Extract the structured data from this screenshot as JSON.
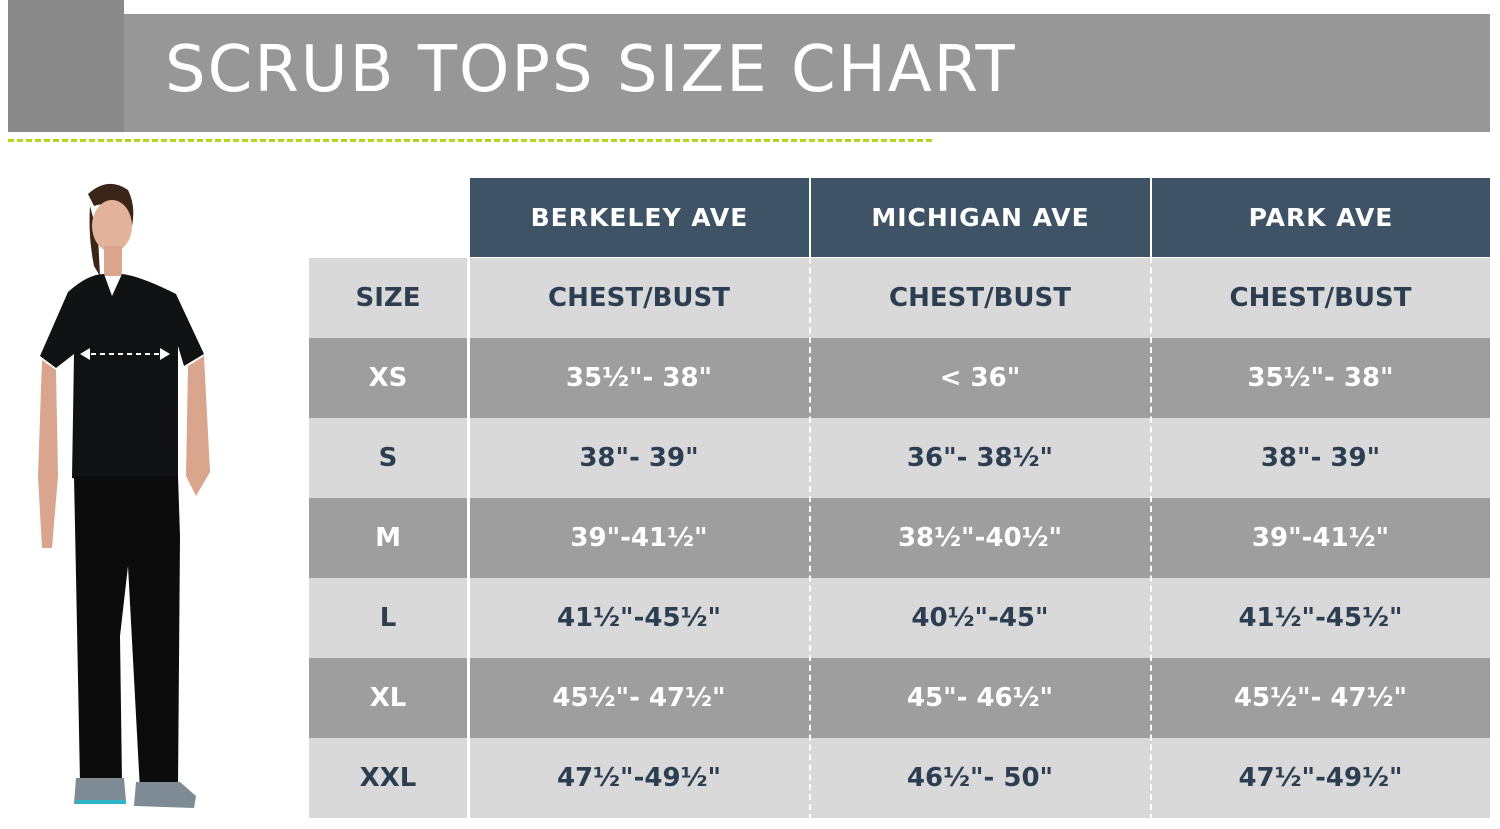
{
  "title": "SCRUB TOPS SIZE CHART",
  "colors": {
    "banner": "#979797",
    "accent_dash": "#b9d41c",
    "brand_header": "#3e5365",
    "row_light": "#d9d9d9",
    "row_dark": "#9e9e9e",
    "text_dark": "#2b3e52"
  },
  "figure_icon": "woman-in-black-scrubs-with-chest-measure-arrow",
  "table": {
    "brands": [
      "BERKELEY AVE",
      "MICHIGAN AVE",
      "PARK AVE"
    ],
    "header_row": {
      "size_label": "SIZE",
      "measure_labels": [
        "CHEST/BUST",
        "CHEST/BUST",
        "CHEST/BUST"
      ]
    },
    "rows": [
      {
        "size": "XS",
        "values": [
          "35½\"- 38\"",
          "< 36\"",
          "35½\"- 38\""
        ]
      },
      {
        "size": "S",
        "values": [
          "38\"- 39\"",
          "36\"- 38½\"",
          "38\"- 39\""
        ]
      },
      {
        "size": "M",
        "values": [
          "39\"-41½\"",
          "38½\"-40½\"",
          "39\"-41½\""
        ]
      },
      {
        "size": "L",
        "values": [
          "41½\"-45½\"",
          "40½\"-45\"",
          "41½\"-45½\""
        ]
      },
      {
        "size": "XL",
        "values": [
          "45½\"- 47½\"",
          "45\"- 46½\"",
          "45½\"- 47½\""
        ]
      },
      {
        "size": "XXL",
        "values": [
          "47½\"-49½\"",
          "46½\"- 50\"",
          "47½\"-49½\""
        ]
      }
    ]
  }
}
